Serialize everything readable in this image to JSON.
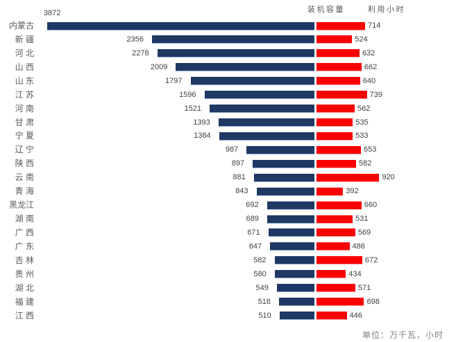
{
  "legend": {
    "capacity_label": "装机容量",
    "hours_label": "利用小时"
  },
  "footer": {
    "unit_note": "单位：万千瓦，小时"
  },
  "colors": {
    "capacity_bar": "#1F3864",
    "hours_bar": "#FA0000",
    "label_gray": "#595959",
    "value_text": "#404040",
    "footer_gray": "#808080",
    "background": "#FFFFFF"
  },
  "chart_data": {
    "type": "bar",
    "orientation": "diverging-horizontal",
    "title": "",
    "xlabel": "",
    "ylabel": "",
    "legend_position": "top-right",
    "grid": false,
    "unit_note": "单位：万千瓦，小时",
    "series": [
      {
        "name": "装机容量",
        "color": "#1F3864",
        "side": "left"
      },
      {
        "name": "利用小时",
        "color": "#FA0000",
        "side": "right"
      }
    ],
    "capacity_range": [
      0,
      3872
    ],
    "hours_range": [
      0,
      920
    ],
    "provinces": [
      {
        "name": "内蒙古",
        "capacity": 3872,
        "hours": 714,
        "capacity_label_above": true
      },
      {
        "name": "新 疆",
        "capacity": 2356,
        "hours": 524
      },
      {
        "name": "河 北",
        "capacity": 2278,
        "hours": 632
      },
      {
        "name": "山 西",
        "capacity": 2009,
        "hours": 662
      },
      {
        "name": "山 东",
        "capacity": 1797,
        "hours": 640
      },
      {
        "name": "江 苏",
        "capacity": 1596,
        "hours": 739
      },
      {
        "name": "河 南",
        "capacity": 1521,
        "hours": 562
      },
      {
        "name": "甘 肃",
        "capacity": 1393,
        "hours": 535
      },
      {
        "name": "宁 夏",
        "capacity": 1384,
        "hours": 533
      },
      {
        "name": "辽 宁",
        "capacity": 987,
        "hours": 653
      },
      {
        "name": "陕 西",
        "capacity": 897,
        "hours": 582
      },
      {
        "name": "云 南",
        "capacity": 881,
        "hours": 920
      },
      {
        "name": "青 海",
        "capacity": 843,
        "hours": 392
      },
      {
        "name": "黑龙江",
        "capacity": 692,
        "hours": 660
      },
      {
        "name": "湖 南",
        "capacity": 689,
        "hours": 531
      },
      {
        "name": "广 西",
        "capacity": 671,
        "hours": 569
      },
      {
        "name": "广 东",
        "capacity": 647,
        "hours": 486
      },
      {
        "name": "吉 林",
        "capacity": 582,
        "hours": 672
      },
      {
        "name": "贵 州",
        "capacity": 580,
        "hours": 434
      },
      {
        "name": "湖 北",
        "capacity": 549,
        "hours": 571
      },
      {
        "name": "福 建",
        "capacity": 518,
        "hours": 698
      },
      {
        "name": "江 西",
        "capacity": 510,
        "hours": 446
      }
    ]
  }
}
